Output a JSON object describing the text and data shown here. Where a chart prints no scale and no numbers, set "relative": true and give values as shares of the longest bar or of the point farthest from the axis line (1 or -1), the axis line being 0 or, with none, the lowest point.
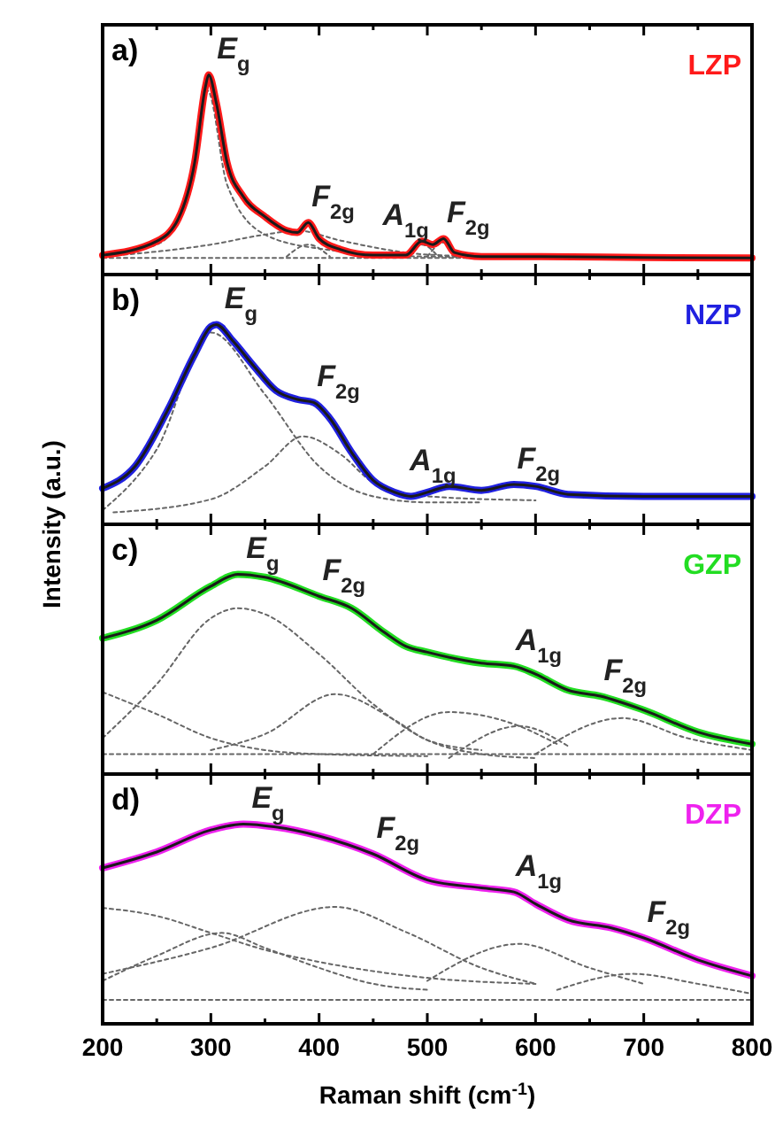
{
  "chart_data": [
    {
      "type": "line",
      "title": "a)",
      "relative": true,
      "xlim": [
        200,
        800
      ],
      "xticks": [
        200,
        {
          "value": 250,
          "label": null
        },
        300,
        {
          "value": 350,
          "label": null
        },
        400,
        {
          "value": 450,
          "label": null
        },
        500,
        {
          "value": 550,
          "label": null
        },
        600,
        {
          "value": 650,
          "label": null
        },
        700,
        {
          "value": 750,
          "label": null
        },
        800
      ],
      "tick_labels": false,
      "marker": "none",
      "annotations": [
        {
          "text": "E$_{g}$",
          "x": 298,
          "y": 1.0
        },
        {
          "text": "F$_{2g}$",
          "x": 390,
          "y": 0.26
        },
        {
          "text": "A$_{1g}$",
          "x": 495,
          "y": 0.167
        },
        {
          "text": "F$_{2g}$",
          "x": 515,
          "y": 0.18
        }
      ],
      "series": [
        {
          "name": "LZP",
          "color": "#ff1a1a",
          "line_style": "solid",
          "x": [
            200,
            250,
            270,
            285,
            295,
            298,
            305,
            315,
            330,
            350,
            370,
            380,
            390,
            400,
            420,
            450,
            480,
            495,
            505,
            515,
            525,
            550,
            600,
            700,
            800
          ],
          "values": [
            0.097,
            0.167,
            0.28,
            0.56,
            0.94,
            1.0,
            0.86,
            0.56,
            0.39,
            0.29,
            0.22,
            0.21,
            0.26,
            0.18,
            0.125,
            0.097,
            0.097,
            0.167,
            0.15,
            0.18,
            0.11,
            0.09,
            0.09,
            0.085,
            0.083
          ]
        },
        {
          "color": "#1a1a1a",
          "line_style": "solid",
          "x": [
            200,
            250,
            270,
            285,
            295,
            298,
            305,
            315,
            330,
            350,
            370,
            380,
            390,
            400,
            420,
            450,
            480,
            495,
            505,
            515,
            525,
            550,
            600,
            700,
            800
          ],
          "values": [
            0.097,
            0.167,
            0.28,
            0.56,
            0.94,
            1.0,
            0.86,
            0.56,
            0.39,
            0.29,
            0.22,
            0.21,
            0.26,
            0.18,
            0.125,
            0.097,
            0.097,
            0.167,
            0.15,
            0.18,
            0.11,
            0.09,
            0.09,
            0.085,
            0.083
          ]
        },
        {
          "color": "#666666",
          "line_style": "dotted",
          "x": [
            200,
            250,
            280,
            297,
            315,
            350,
            400,
            500,
            800
          ],
          "values": [
            0.1,
            0.15,
            0.4,
            0.92,
            0.45,
            0.2,
            0.13,
            0.09,
            0.083
          ]
        },
        {
          "color": "#666666",
          "line_style": "dotted",
          "x": [
            200,
            300,
            350,
            380,
            420,
            500,
            600
          ],
          "values": [
            0.09,
            0.15,
            0.2,
            0.22,
            0.17,
            0.1,
            0.085
          ]
        },
        {
          "color": "#666666",
          "line_style": "dotted",
          "x": [
            370,
            390,
            410
          ],
          "values": [
            0.09,
            0.15,
            0.09
          ]
        },
        {
          "color": "#666666",
          "line_style": "dotted",
          "x": [
            480,
            495,
            510
          ],
          "values": [
            0.085,
            0.15,
            0.09
          ]
        },
        {
          "color": "#666666",
          "line_style": "dotted",
          "x": [
            500,
            515,
            530
          ],
          "values": [
            0.09,
            0.16,
            0.085
          ]
        },
        {
          "color": "#666666",
          "line_style": "dotted",
          "x": [
            200,
            800
          ],
          "values": [
            0.083,
            0.083
          ]
        }
      ]
    },
    {
      "type": "line",
      "title": "b)",
      "ylabel": "Intensity (a.u.)",
      "relative": true,
      "xlim": [
        200,
        800
      ],
      "xticks": [
        200,
        {
          "value": 250,
          "label": null
        },
        300,
        {
          "value": 350,
          "label": null
        },
        400,
        {
          "value": 450,
          "label": null
        },
        500,
        {
          "value": 550,
          "label": null
        },
        600,
        {
          "value": 650,
          "label": null
        },
        700,
        {
          "value": 750,
          "label": null
        },
        800
      ],
      "tick_labels": false,
      "marker": "none",
      "annotations": [
        {
          "text": "E$_{g}$",
          "x": 305,
          "y": 1.0
        },
        {
          "text": "F$_{2g}$",
          "x": 395,
          "y": 0.61
        },
        {
          "text": "A$_{1g}$",
          "x": 520,
          "y": 0.19
        },
        {
          "text": "F$_{2g}$",
          "x": 580,
          "y": 0.2
        }
      ],
      "series": [
        {
          "name": "NZP",
          "color": "#2020e0",
          "line_style": "solid",
          "x": [
            200,
            230,
            260,
            285,
            300,
            305,
            320,
            340,
            360,
            380,
            395,
            410,
            430,
            450,
            470,
            485,
            500,
            520,
            550,
            580,
            600,
            630,
            700,
            800
          ],
          "values": [
            0.18,
            0.29,
            0.57,
            0.85,
            0.99,
            1.0,
            0.92,
            0.79,
            0.67,
            0.625,
            0.61,
            0.53,
            0.36,
            0.22,
            0.16,
            0.14,
            0.16,
            0.19,
            0.17,
            0.2,
            0.19,
            0.15,
            0.14,
            0.14
          ]
        },
        {
          "color": "#1a1a1a",
          "line_style": "solid",
          "x": [
            200,
            230,
            260,
            285,
            300,
            305,
            320,
            340,
            360,
            380,
            395,
            410,
            430,
            450,
            470,
            485,
            500,
            520,
            550,
            580,
            600,
            630,
            700,
            800
          ],
          "values": [
            0.18,
            0.29,
            0.57,
            0.85,
            0.99,
            1.0,
            0.92,
            0.79,
            0.67,
            0.625,
            0.61,
            0.53,
            0.36,
            0.22,
            0.16,
            0.14,
            0.16,
            0.19,
            0.17,
            0.2,
            0.19,
            0.15,
            0.14,
            0.14
          ]
        },
        {
          "color": "#666666",
          "line_style": "dotted",
          "x": [
            200,
            250,
            300,
            350,
            400,
            450,
            500,
            550
          ],
          "values": [
            0.07,
            0.375,
            0.96,
            0.65,
            0.29,
            0.14,
            0.11,
            0.11
          ]
        },
        {
          "color": "#666666",
          "line_style": "dotted",
          "x": [
            210,
            300,
            350,
            385,
            420,
            450,
            500,
            600
          ],
          "values": [
            0.06,
            0.125,
            0.29,
            0.44,
            0.35,
            0.21,
            0.14,
            0.12
          ]
        }
      ]
    },
    {
      "type": "line",
      "title": "c)",
      "relative": true,
      "xlim": [
        200,
        800
      ],
      "xticks": [
        200,
        {
          "value": 250,
          "label": null
        },
        300,
        {
          "value": 350,
          "label": null
        },
        400,
        {
          "value": 450,
          "label": null
        },
        500,
        {
          "value": 550,
          "label": null
        },
        600,
        {
          "value": 650,
          "label": null
        },
        700,
        {
          "value": 750,
          "label": null
        },
        800
      ],
      "tick_labels": false,
      "marker": "none",
      "annotations": [
        {
          "text": "E$_{g}$",
          "x": 325,
          "y": 1.0
        },
        {
          "text": "F$_{2g}$",
          "x": 400,
          "y": 0.89
        },
        {
          "text": "A$_{1g}$",
          "x": 580,
          "y": 0.54
        },
        {
          "text": "F$_{2g}$",
          "x": 660,
          "y": 0.39
        }
      ],
      "series": [
        {
          "name": "GZP",
          "color": "#22dd22",
          "line_style": "solid",
          "x": [
            200,
            250,
            300,
            325,
            350,
            400,
            430,
            460,
            480,
            500,
            550,
            580,
            600,
            630,
            660,
            700,
            750,
            800
          ],
          "values": [
            0.68,
            0.77,
            0.94,
            1.0,
            0.985,
            0.89,
            0.83,
            0.71,
            0.64,
            0.61,
            0.555,
            0.54,
            0.5,
            0.42,
            0.39,
            0.32,
            0.21,
            0.15
          ]
        },
        {
          "color": "#1a1a1a",
          "line_style": "solid",
          "x": [
            200,
            250,
            300,
            325,
            350,
            400,
            430,
            460,
            480,
            500,
            550,
            580,
            600,
            630,
            660,
            700,
            750,
            800
          ],
          "values": [
            0.68,
            0.77,
            0.94,
            1.0,
            0.985,
            0.89,
            0.83,
            0.71,
            0.64,
            0.61,
            0.555,
            0.54,
            0.5,
            0.42,
            0.39,
            0.32,
            0.21,
            0.15
          ]
        },
        {
          "color": "#666666",
          "line_style": "dotted",
          "x": [
            200,
            250,
            300,
            325,
            350,
            400,
            450,
            500,
            550,
            600
          ],
          "values": [
            0.18,
            0.45,
            0.78,
            0.83,
            0.8,
            0.6,
            0.35,
            0.17,
            0.1,
            0.08
          ]
        },
        {
          "color": "#666666",
          "line_style": "dotted",
          "x": [
            200,
            250,
            300,
            350,
            400,
            500
          ],
          "values": [
            0.41,
            0.3,
            0.18,
            0.12,
            0.1,
            0.09
          ]
        },
        {
          "color": "#666666",
          "line_style": "dotted",
          "x": [
            300,
            350,
            415,
            470,
            500,
            550
          ],
          "values": [
            0.12,
            0.2,
            0.4,
            0.27,
            0.17,
            0.12
          ]
        },
        {
          "color": "#666666",
          "line_style": "dotted",
          "x": [
            450,
            520,
            580,
            620
          ],
          "values": [
            0.1,
            0.31,
            0.25,
            0.15
          ]
        },
        {
          "color": "#666666",
          "line_style": "dotted",
          "x": [
            520,
            585,
            630
          ],
          "values": [
            0.08,
            0.24,
            0.14
          ]
        },
        {
          "color": "#666666",
          "line_style": "dotted",
          "x": [
            600,
            680,
            740,
            800
          ],
          "values": [
            0.1,
            0.28,
            0.18,
            0.12
          ]
        },
        {
          "color": "#666666",
          "line_style": "dotted",
          "x": [
            200,
            800
          ],
          "values": [
            0.1,
            0.1
          ]
        }
      ]
    },
    {
      "type": "line",
      "title": "d)",
      "xlabel": "Raman shift (cm$^{-1}$)",
      "relative": true,
      "xlim": [
        200,
        800
      ],
      "xticks": [
        200,
        {
          "value": 250,
          "label": null
        },
        300,
        {
          "value": 350,
          "label": null
        },
        400,
        {
          "value": 450,
          "label": null
        },
        500,
        {
          "value": 550,
          "label": null
        },
        600,
        {
          "value": 650,
          "label": null
        },
        700,
        {
          "value": 750,
          "label": null
        },
        800
      ],
      "tick_labels": "x",
      "marker": "none",
      "annotations": [
        {
          "text": "E$_{g}$",
          "x": 330,
          "y": 1.0
        },
        {
          "text": "F$_{2g}$",
          "x": 450,
          "y": 0.85
        },
        {
          "text": "A$_{1g}$",
          "x": 580,
          "y": 0.66
        },
        {
          "text": "F$_{2g}$",
          "x": 700,
          "y": 0.43
        }
      ],
      "series": [
        {
          "name": "DZP",
          "color": "#ee22ee",
          "line_style": "solid",
          "x": [
            200,
            250,
            300,
            330,
            360,
            400,
            450,
            500,
            550,
            580,
            600,
            630,
            670,
            700,
            750,
            800
          ],
          "values": [
            0.78,
            0.86,
            0.97,
            1.0,
            0.985,
            0.94,
            0.85,
            0.72,
            0.68,
            0.66,
            0.6,
            0.52,
            0.48,
            0.43,
            0.32,
            0.24
          ]
        },
        {
          "color": "#1a1a1a",
          "line_style": "solid",
          "x": [
            200,
            250,
            300,
            330,
            360,
            400,
            450,
            500,
            550,
            580,
            600,
            630,
            670,
            700,
            750,
            800
          ],
          "values": [
            0.78,
            0.86,
            0.97,
            1.0,
            0.985,
            0.94,
            0.85,
            0.72,
            0.68,
            0.66,
            0.6,
            0.52,
            0.48,
            0.43,
            0.32,
            0.24
          ]
        },
        {
          "color": "#666666",
          "line_style": "dotted",
          "x": [
            200,
            250,
            300,
            350,
            400,
            500,
            600
          ],
          "values": [
            0.58,
            0.54,
            0.455,
            0.37,
            0.31,
            0.23,
            0.2
          ]
        },
        {
          "color": "#666666",
          "line_style": "dotted",
          "x": [
            200,
            250,
            310,
            350,
            400,
            450,
            500
          ],
          "values": [
            0.215,
            0.34,
            0.455,
            0.38,
            0.28,
            0.2,
            0.17
          ]
        },
        {
          "color": "#666666",
          "line_style": "dotted",
          "x": [
            200,
            300,
            415,
            480,
            550,
            600
          ],
          "values": [
            0.25,
            0.38,
            0.585,
            0.46,
            0.28,
            0.2
          ]
        },
        {
          "color": "#666666",
          "line_style": "dotted",
          "x": [
            500,
            585,
            650,
            700
          ],
          "values": [
            0.215,
            0.4,
            0.28,
            0.2
          ]
        },
        {
          "color": "#666666",
          "line_style": "dotted",
          "x": [
            620,
            690,
            750,
            800
          ],
          "values": [
            0.17,
            0.25,
            0.2,
            0.15
          ]
        },
        {
          "color": "#666666",
          "line_style": "dotted",
          "x": [
            200,
            800
          ],
          "values": [
            0.12,
            0.12
          ]
        }
      ]
    }
  ]
}
